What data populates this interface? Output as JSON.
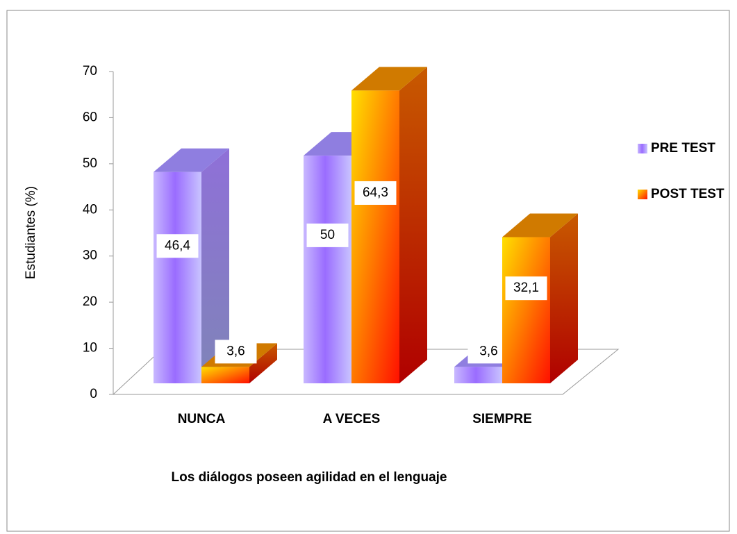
{
  "chart_data": {
    "type": "bar3d",
    "x_label": "Los diálogos poseen agilidad en el lenguaje",
    "y_label": "Estudiantes (%)",
    "categories": [
      "NUNCA",
      "A VECES",
      "SIEMPRE"
    ],
    "series": [
      {
        "name": "PRE TEST",
        "color": "#9a7cff",
        "values": [
          46.4,
          50,
          3.6
        ],
        "value_labels": [
          "46,4",
          "50",
          "3,6"
        ]
      },
      {
        "name": "POST TEST",
        "color": "#ff6a00",
        "values": [
          3.6,
          64.3,
          32.1
        ],
        "value_labels": [
          "3,6",
          "64,3",
          "32,1"
        ]
      }
    ],
    "ylim": [
      0,
      70
    ],
    "yticks": [
      0,
      10,
      20,
      30,
      40,
      50,
      60,
      70
    ],
    "legend": "right"
  }
}
